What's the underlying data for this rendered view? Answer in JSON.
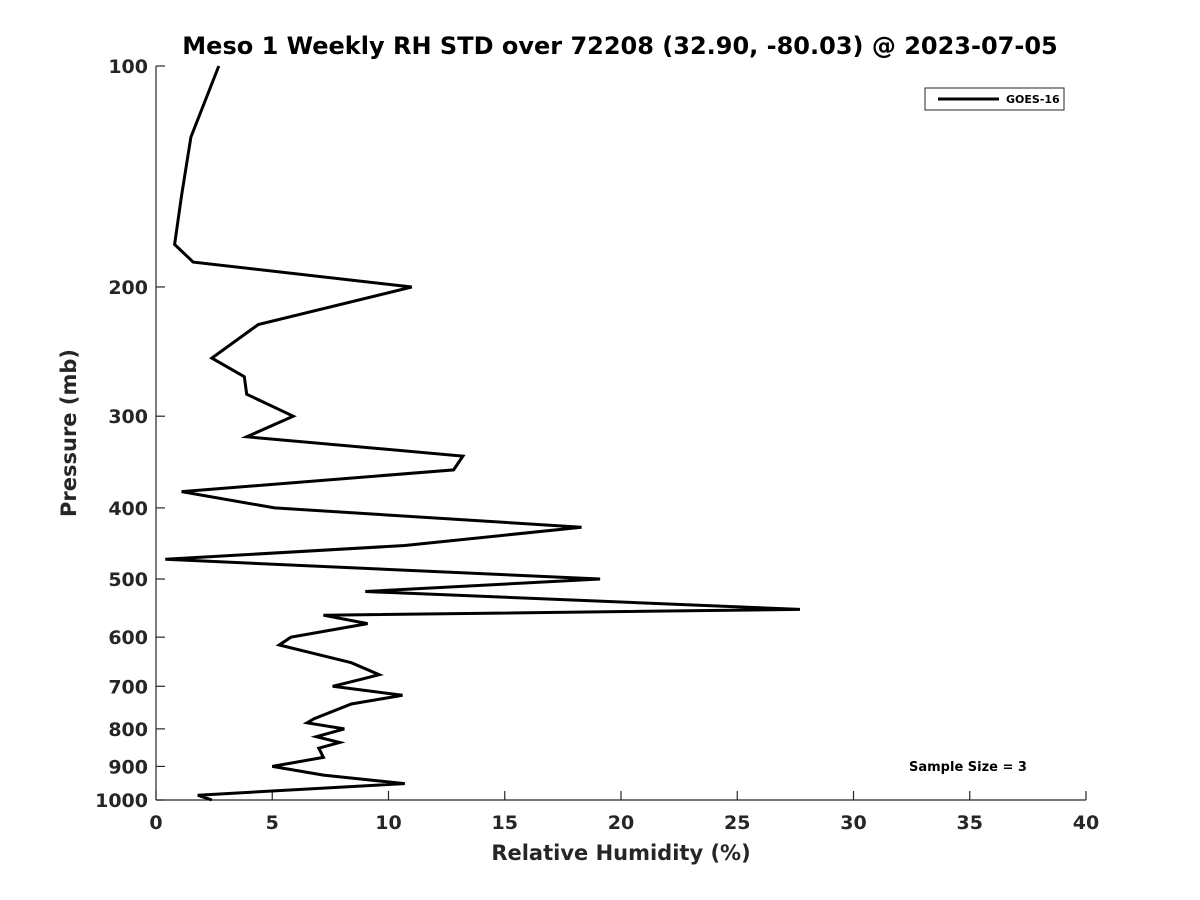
{
  "chart_data": {
    "type": "line",
    "title": "Meso 1 Weekly RH STD over 72208 (32.90, -80.03) @ 2023-07-05",
    "xlabel": "Relative Humidity (%)",
    "ylabel": "Pressure (mb)",
    "xlim": [
      0,
      40
    ],
    "ylim": [
      100,
      1000
    ],
    "y_scale": "log",
    "y_inverted": true,
    "x_ticks": [
      "0",
      "5",
      "10",
      "15",
      "20",
      "25",
      "30",
      "35",
      "40"
    ],
    "y_ticks": [
      "100",
      "200",
      "300",
      "400",
      "500",
      "600",
      "700",
      "800",
      "900",
      "1000"
    ],
    "grid": false,
    "legend_position": "top-right",
    "annotation": "Sample Size = 3",
    "series": [
      {
        "name": "GOES-16",
        "color": "#000000",
        "x": [
          2.7,
          1.5,
          1.1,
          0.8,
          1.6,
          11.0,
          4.4,
          2.4,
          3.8,
          3.9,
          5.9,
          3.9,
          13.2,
          12.8,
          1.1,
          5.1,
          18.3,
          10.7,
          0.4,
          19.1,
          9.0,
          27.7,
          7.2,
          9.1,
          5.8,
          5.3,
          8.4,
          9.6,
          8.8,
          7.6,
          10.6,
          8.4,
          6.8,
          6.5,
          8.1,
          6.9,
          7.9,
          7.0,
          7.2,
          5.0,
          7.2,
          10.7,
          1.8,
          2.4
        ],
        "y": [
          100,
          125,
          150,
          175,
          185,
          200,
          225,
          250,
          265,
          280,
          300,
          320,
          340,
          355,
          380,
          400,
          425,
          450,
          470,
          500,
          520,
          550,
          560,
          575,
          600,
          615,
          650,
          675,
          685,
          700,
          720,
          740,
          775,
          785,
          800,
          820,
          835,
          850,
          875,
          900,
          925,
          950,
          985,
          1000
        ]
      }
    ]
  }
}
